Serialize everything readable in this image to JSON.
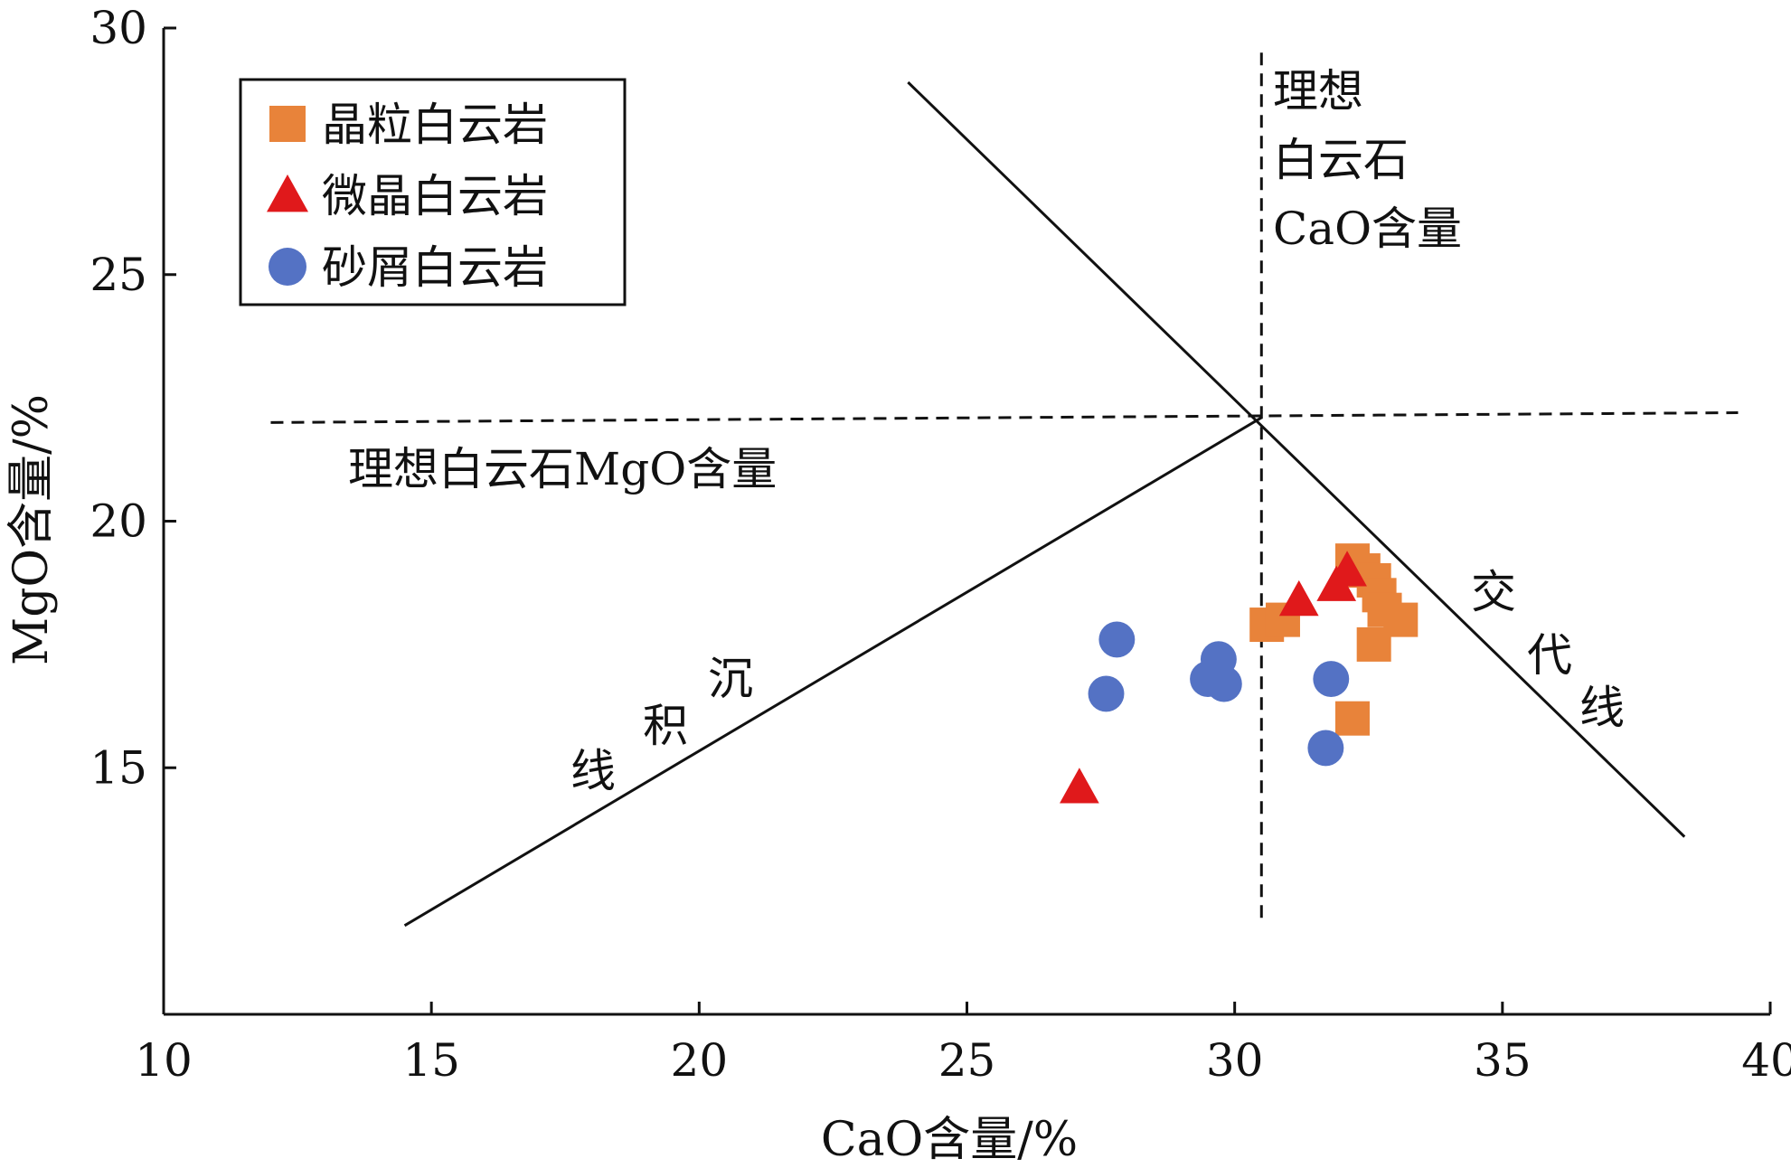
{
  "chart_data": {
    "type": "scatter",
    "xlabel": "CaO含量/%",
    "ylabel": "MgO含量/%",
    "xlim": [
      10,
      40
    ],
    "ylim": [
      10,
      30
    ],
    "x_ticks": [
      "10",
      "15",
      "20",
      "25",
      "30",
      "35",
      "40"
    ],
    "y_ticks": [
      "15",
      "20",
      "25",
      "30"
    ],
    "grid": false,
    "legend_position": "top-left",
    "series": [
      {
        "name": "晶粒白云岩",
        "marker": "square",
        "color": "#E8833A",
        "points": [
          {
            "x": 30.6,
            "y": 17.9
          },
          {
            "x": 30.9,
            "y": 18.0
          },
          {
            "x": 32.2,
            "y": 19.2
          },
          {
            "x": 32.4,
            "y": 19.0
          },
          {
            "x": 32.6,
            "y": 18.8
          },
          {
            "x": 32.7,
            "y": 18.5
          },
          {
            "x": 32.8,
            "y": 18.2
          },
          {
            "x": 33.1,
            "y": 18.0
          },
          {
            "x": 32.6,
            "y": 17.5
          },
          {
            "x": 32.2,
            "y": 16.0
          }
        ]
      },
      {
        "name": "微晶白云岩",
        "marker": "triangle",
        "color": "#E0191B",
        "points": [
          {
            "x": 27.1,
            "y": 14.6
          },
          {
            "x": 31.2,
            "y": 18.4
          },
          {
            "x": 31.9,
            "y": 18.7
          },
          {
            "x": 32.1,
            "y": 19.0
          }
        ]
      },
      {
        "name": "砂屑白云岩",
        "marker": "circle",
        "color": "#5472C4",
        "points": [
          {
            "x": 27.8,
            "y": 17.6
          },
          {
            "x": 27.6,
            "y": 16.5
          },
          {
            "x": 29.7,
            "y": 17.2
          },
          {
            "x": 29.5,
            "y": 16.8
          },
          {
            "x": 29.8,
            "y": 16.7
          },
          {
            "x": 31.8,
            "y": 16.8
          },
          {
            "x": 31.7,
            "y": 15.4
          }
        ]
      }
    ],
    "reference_lines": [
      {
        "id": "sedimentation",
        "style": "solid",
        "x1": 14.5,
        "y1": 11.8,
        "x2": 30.5,
        "y2": 22.1
      },
      {
        "id": "replacement",
        "style": "solid",
        "x1": 23.9,
        "y1": 28.9,
        "x2": 38.4,
        "y2": 13.6
      },
      {
        "id": "ideal-mgo",
        "style": "dashed",
        "x1": 12.0,
        "y1": 22.0,
        "x2": 39.4,
        "y2": 22.2
      },
      {
        "id": "ideal-cao",
        "style": "dashed",
        "x1": 30.5,
        "y1": 29.5,
        "x2": 30.5,
        "y2": 11.9
      }
    ],
    "annotations": {
      "ideal_mgo": "理想白云石MgO含量",
      "ideal_cao": [
        "理想",
        "白云石",
        "CaO含量"
      ],
      "sedimentation_line": [
        "沉",
        "积",
        "线"
      ],
      "replacement_line": [
        "交",
        "代",
        "线"
      ]
    }
  }
}
